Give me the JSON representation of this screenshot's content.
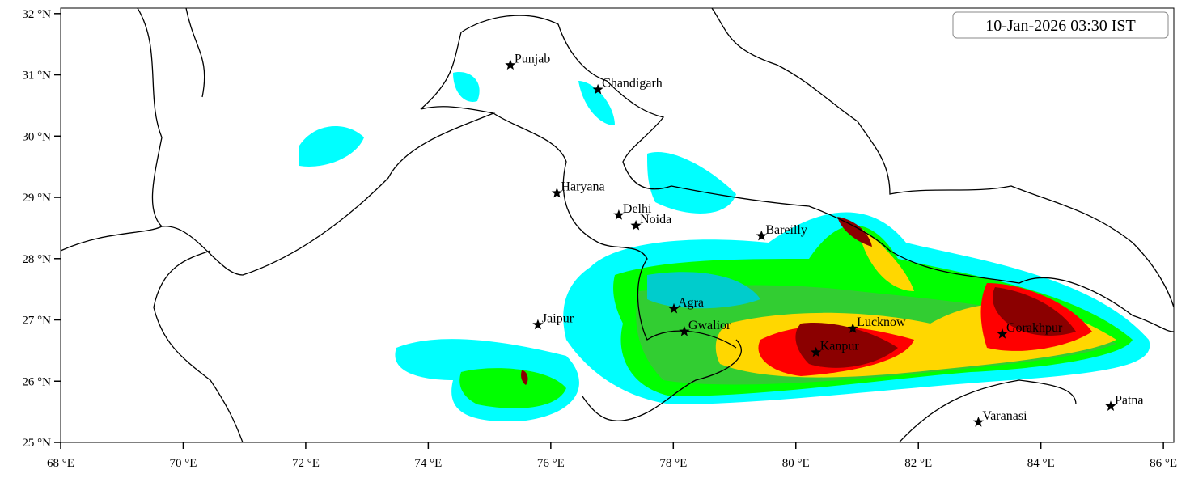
{
  "map_data": {
    "timestamp": "10-Jan-2026 03:30 IST",
    "xlim": [
      68,
      86.17
    ],
    "ylim": [
      25,
      32.09
    ],
    "xticks": [
      {
        "value": 68,
        "label": "68 °E"
      },
      {
        "value": 70,
        "label": "70 °E"
      },
      {
        "value": 72,
        "label": "72 °E"
      },
      {
        "value": 74,
        "label": "74 °E"
      },
      {
        "value": 76,
        "label": "76 °E"
      },
      {
        "value": 78,
        "label": "78 °E"
      },
      {
        "value": 80,
        "label": "80 °E"
      },
      {
        "value": 82,
        "label": "82 °E"
      },
      {
        "value": 84,
        "label": "84 °E"
      },
      {
        "value": 86,
        "label": "86 °E"
      }
    ],
    "yticks": [
      {
        "value": 25,
        "label": "25 °N"
      },
      {
        "value": 26,
        "label": "26 °N"
      },
      {
        "value": 27,
        "label": "27 °N"
      },
      {
        "value": 28,
        "label": "28 °N"
      },
      {
        "value": 29,
        "label": "29 °N"
      },
      {
        "value": 30,
        "label": "30 °N"
      },
      {
        "value": 31,
        "label": "31 °N"
      },
      {
        "value": 32,
        "label": "32 °N"
      }
    ],
    "cities": [
      {
        "name": "Punjab",
        "lon": 75.34,
        "lat": 31.16
      },
      {
        "name": "Chandigarh",
        "lon": 76.77,
        "lat": 30.76
      },
      {
        "name": "Haryana",
        "lon": 76.1,
        "lat": 29.07
      },
      {
        "name": "Delhi",
        "lon": 77.11,
        "lat": 28.71
      },
      {
        "name": "Noida",
        "lon": 77.39,
        "lat": 28.54
      },
      {
        "name": "Bareilly",
        "lon": 79.44,
        "lat": 28.37
      },
      {
        "name": "Agra",
        "lon": 78.01,
        "lat": 27.18
      },
      {
        "name": "Jaipur",
        "lon": 75.79,
        "lat": 26.92
      },
      {
        "name": "Gwalior",
        "lon": 78.18,
        "lat": 26.81
      },
      {
        "name": "Lucknow",
        "lon": 80.93,
        "lat": 26.86
      },
      {
        "name": "Kanpur",
        "lon": 80.33,
        "lat": 26.47
      },
      {
        "name": "Gorakhpur",
        "lon": 83.37,
        "lat": 26.77
      },
      {
        "name": "Patna",
        "lon": 85.14,
        "lat": 25.59
      },
      {
        "name": "Varanasi",
        "lon": 82.98,
        "lat": 25.33
      }
    ]
  }
}
